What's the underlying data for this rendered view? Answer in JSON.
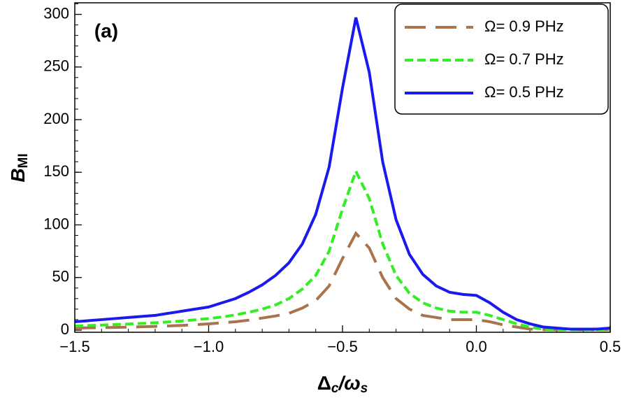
{
  "chart_data": {
    "type": "line",
    "annotation": "(a)",
    "xlabel": [
      "Δ",
      "c",
      "/ω",
      "s"
    ],
    "ylabel": [
      "B",
      "MI"
    ],
    "x": [
      -1.5,
      -1.45,
      -1.4,
      -1.35,
      -1.3,
      -1.25,
      -1.2,
      -1.15,
      -1.1,
      -1.05,
      -1.0,
      -0.95,
      -0.9,
      -0.85,
      -0.8,
      -0.75,
      -0.7,
      -0.65,
      -0.6,
      -0.55,
      -0.5,
      -0.45,
      -0.4,
      -0.35,
      -0.3,
      -0.25,
      -0.2,
      -0.15,
      -0.1,
      -0.05,
      0.0,
      0.05,
      0.1,
      0.15,
      0.2,
      0.25,
      0.3,
      0.35,
      0.4,
      0.45,
      0.5
    ],
    "series": [
      {
        "name": "Ω= 0.9 PHz",
        "color": "#a9744b",
        "style": "long-dash",
        "values": [
          2,
          2.2,
          2.4,
          2.6,
          2.9,
          3.2,
          3.6,
          4,
          4.5,
          5.2,
          6,
          7,
          8,
          9.5,
          11.5,
          13.5,
          16,
          21,
          28,
          42,
          68,
          92,
          78,
          50,
          30,
          20,
          14,
          12,
          10,
          10,
          10,
          8,
          5,
          3,
          1,
          0.5,
          0.3,
          0.3,
          0.3,
          0.3,
          0.5
        ]
      },
      {
        "name": "Ω= 0.7 PHz",
        "color": "#33ee22",
        "style": "dash",
        "values": [
          4,
          4.4,
          4.8,
          5.3,
          5.8,
          6.4,
          7,
          7.8,
          8.7,
          9.8,
          11,
          12.5,
          14.5,
          17,
          20,
          24,
          30,
          39,
          52,
          75,
          115,
          151,
          125,
          82,
          52,
          35,
          26,
          21,
          18,
          17,
          17,
          14,
          10,
          6,
          3,
          1,
          0.5,
          0.3,
          0.3,
          0.3,
          0.5
        ]
      },
      {
        "name": "Ω= 0.5 PHz",
        "color": "#1a1aee",
        "style": "solid",
        "values": [
          8,
          9,
          10,
          11,
          12,
          13,
          14,
          16,
          18,
          20,
          22,
          26,
          30,
          36,
          43,
          52,
          64,
          82,
          110,
          155,
          230,
          297,
          245,
          160,
          105,
          72,
          53,
          42,
          36,
          34,
          33,
          26,
          17,
          10,
          6,
          3,
          2,
          1,
          1,
          1,
          2
        ]
      }
    ],
    "xlim": [
      -1.5,
      0.5
    ],
    "ylim": [
      -2,
      311
    ],
    "xticks": [
      {
        "value": -1.5,
        "label": "−1.5"
      },
      {
        "value": -1.0,
        "label": "−1.0"
      },
      {
        "value": -0.5,
        "label": "−0.5"
      },
      {
        "value": 0,
        "label": "0.0"
      },
      0.5
    ],
    "yticks": [
      0,
      50,
      100,
      150,
      200,
      250,
      300
    ],
    "legend": "top-right"
  }
}
